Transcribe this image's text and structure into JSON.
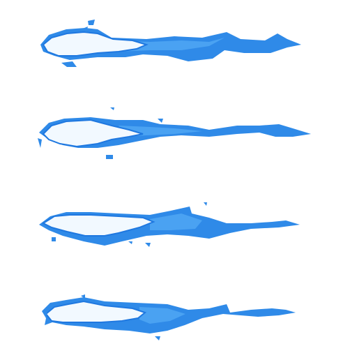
{
  "sprite_sheet": {
    "frame_count": 4,
    "colors": {
      "background": "#ffffff",
      "outer_flame": "#2f8ae8",
      "outer_flame_light": "#4aa2f2",
      "core": "#f2f9ff",
      "core_edge": "#1f78e0"
    },
    "frames": [
      {
        "name": "flame-frame-1",
        "icon": "blue-flame-bolt-icon"
      },
      {
        "name": "flame-frame-2",
        "icon": "blue-flame-bolt-icon"
      },
      {
        "name": "flame-frame-3",
        "icon": "blue-flame-bolt-icon"
      },
      {
        "name": "flame-frame-4",
        "icon": "blue-flame-bolt-icon"
      }
    ]
  }
}
